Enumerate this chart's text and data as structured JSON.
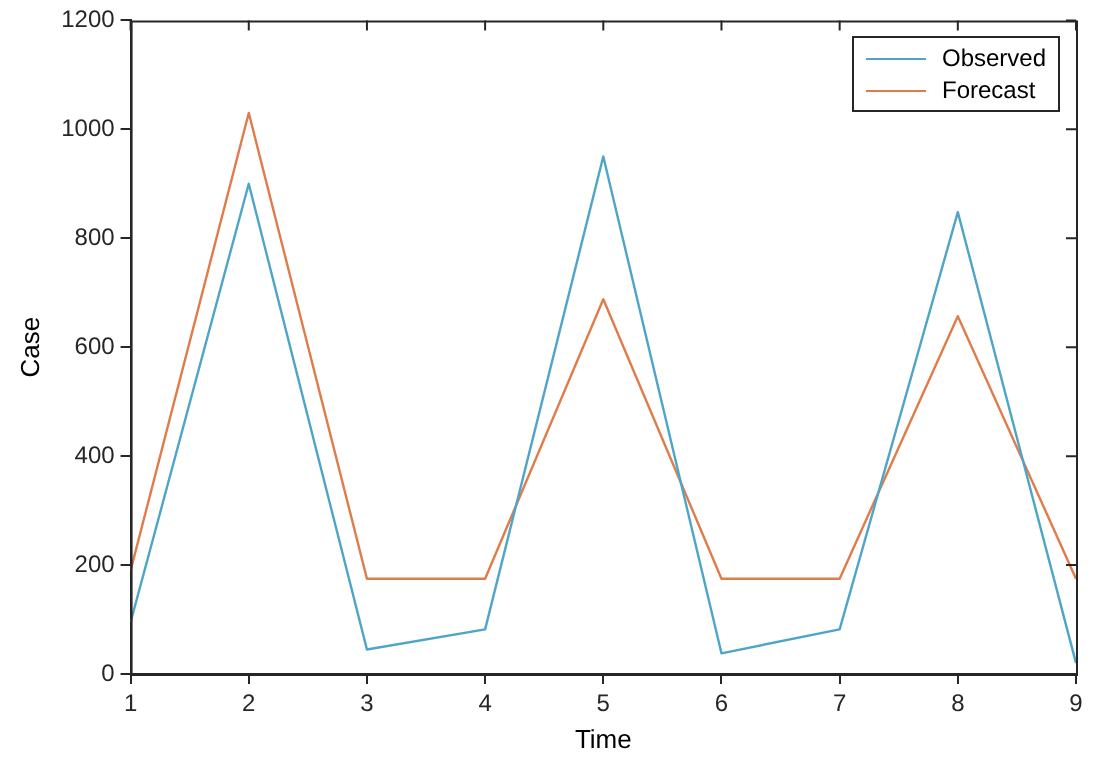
{
  "chart_data": {
    "type": "line",
    "xlabel": "Time",
    "ylabel": "Case",
    "x": [
      1,
      2,
      3,
      4,
      5,
      6,
      7,
      8,
      9
    ],
    "xlim": [
      1,
      9
    ],
    "xticks": [
      1,
      2,
      3,
      4,
      5,
      6,
      7,
      8,
      9
    ],
    "ylim": [
      0,
      1200
    ],
    "yticks": [
      0,
      200,
      400,
      600,
      800,
      1000,
      1200
    ],
    "grid": false,
    "legend": "top right",
    "marker": "none",
    "line_style": "solid",
    "series": [
      {
        "name": "Observed",
        "color": "#4ea5c8",
        "values": [
          95,
          900,
          45,
          82,
          950,
          38,
          82,
          848,
          20
        ]
      },
      {
        "name": "Forecast",
        "color": "#e07b4a",
        "values": [
          190,
          1030,
          175,
          175,
          688,
          175,
          175,
          657,
          175
        ]
      }
    ]
  }
}
